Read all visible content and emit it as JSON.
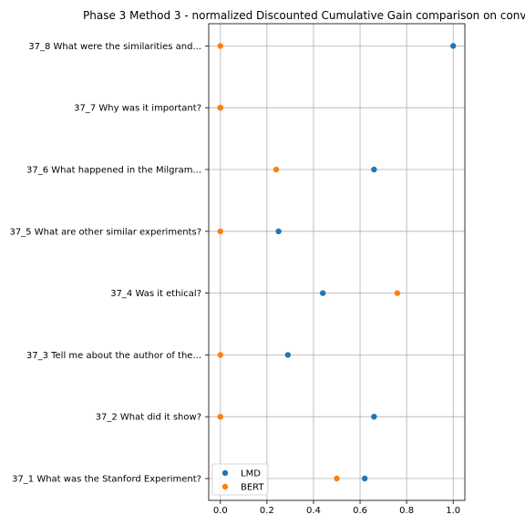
{
  "chart_data": {
    "type": "scatter",
    "title": "Phase 3 Method 3 - normalized Discounted Cumulative Gain comparison on conv",
    "xlabel": "",
    "ylabel": "",
    "xlim": [
      -0.05,
      1.05
    ],
    "x_ticks": [
      "0.0",
      "0.2",
      "0.4",
      "0.6",
      "0.8",
      "1.0"
    ],
    "x_tick_values": [
      0.0,
      0.2,
      0.4,
      0.6,
      0.8,
      1.0
    ],
    "categories": [
      "37_1 What was the Stanford Experiment?",
      "37_2 What did it show?",
      "37_3 Tell me about the author of the...",
      "37_4 Was it ethical?",
      "37_5 What are other similar experiments?",
      "37_6 What happened in the Milgram...",
      "37_7 Why was it important?",
      "37_8 What were the similarities and..."
    ],
    "series": [
      {
        "name": "LMD",
        "color": "#1f77b4",
        "values": [
          0.62,
          0.66,
          0.29,
          0.44,
          0.25,
          0.66,
          0.0,
          1.0
        ]
      },
      {
        "name": "BERT",
        "color": "#ff7f0e",
        "values": [
          0.5,
          0.0,
          0.0,
          0.76,
          0.0,
          0.24,
          0.0,
          0.0
        ]
      }
    ],
    "grid": true,
    "legend_position": "lower-left"
  }
}
